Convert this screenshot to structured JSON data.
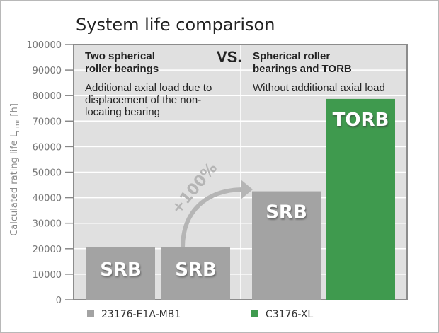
{
  "chart_data": {
    "type": "bar",
    "title": "System life comparison",
    "ylabel": "Calculated rating life L",
    "ylabel_sub": "nmr",
    "ylabel_unit": " [h]",
    "xlabel": "",
    "ylim": [
      0,
      100000
    ],
    "yticks": [
      0,
      10000,
      20000,
      30000,
      40000,
      50000,
      60000,
      70000,
      80000,
      90000,
      100000
    ],
    "ytick_labels": [
      "0",
      "10000",
      "20000",
      "30000",
      "40000",
      "50000",
      "60000",
      "70000",
      "80000",
      "90000",
      "100000"
    ],
    "grid": true,
    "bars": [
      {
        "label": "SRB",
        "value": 20500,
        "series": 0
      },
      {
        "label": "SRB",
        "value": 20500,
        "series": 0
      },
      {
        "label": "SRB",
        "value": 42500,
        "series": 0
      },
      {
        "label": "TORB",
        "value": 78700,
        "series": 1
      }
    ],
    "series": [
      {
        "name": "23176-E1A-MB1",
        "color": "#a3a3a3"
      },
      {
        "name": "C3176-XL",
        "color": "#3f9a4e"
      }
    ],
    "legend_position": "bottom",
    "annotations": {
      "left_heading": [
        "Two spherical",
        "roller bearings"
      ],
      "left_text": [
        "Additional axial load due to",
        "displacement of the non-",
        "locating bearing"
      ],
      "vs": "VS.",
      "right_heading": [
        "Spherical roller",
        "bearings and TORB"
      ],
      "right_text": [
        "Without additional axial load"
      ],
      "increase": "+100%"
    }
  }
}
